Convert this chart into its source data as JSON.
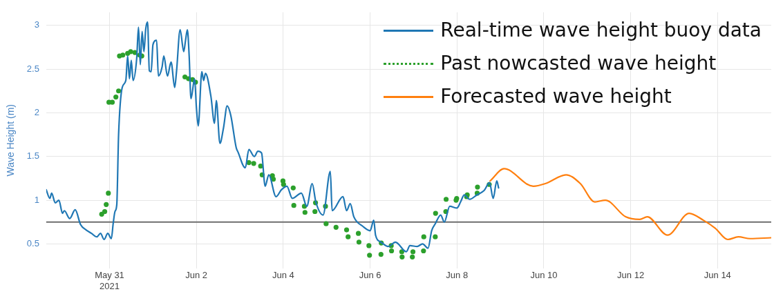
{
  "chart_data": {
    "type": "line",
    "ylabel": "Wave Height (m)",
    "xlim": [
      "2021-05-29T13:00",
      "2021-06-15T05:40"
    ],
    "xticks": [
      {
        "value": "2021-05-31",
        "label": "May 31\n2021"
      },
      {
        "value": "2021-06-02",
        "label": "Jun 2"
      },
      {
        "value": "2021-06-04",
        "label": "Jun 4"
      },
      {
        "value": "2021-06-06",
        "label": "Jun 6"
      },
      {
        "value": "2021-06-08",
        "label": "Jun 8"
      },
      {
        "value": "2021-06-10",
        "label": "Jun 10"
      },
      {
        "value": "2021-06-12",
        "label": "Jun 12"
      },
      {
        "value": "2021-06-14",
        "label": "Jun 14"
      }
    ],
    "ylim": [
      0.22,
      3.15
    ],
    "yticks": [
      0.5,
      1,
      1.5,
      2,
      2.5,
      3
    ],
    "grid": true,
    "legend": "top right",
    "ref_lines": [
      {
        "axis": "y",
        "value": 0.75,
        "color": "#6e6e6e"
      }
    ],
    "series": [
      {
        "name": "Real-time wave height buoy data",
        "color": "#1f77b4",
        "line_style": "solid",
        "x": [
          "2021-05-29T13:00",
          "2021-05-29T15:00",
          "2021-05-29T16:00",
          "2021-05-29T18:00",
          "2021-05-29T20:00",
          "2021-05-29T22:00",
          "2021-05-29T23:00",
          "2021-05-30T02:00",
          "2021-05-30T05:00",
          "2021-05-30T08:00",
          "2021-05-30T11:00",
          "2021-05-30T14:00",
          "2021-05-30T17:00",
          "2021-05-30T19:00",
          "2021-05-30T21:00",
          "2021-05-30T23:00",
          "2021-05-31T01:00",
          "2021-05-31T02:00",
          "2021-05-31T03:00",
          "2021-05-31T04:00",
          "2021-05-31T05:00",
          "2021-05-31T07:00",
          "2021-05-31T09:00",
          "2021-05-31T10:00",
          "2021-05-31T11:00",
          "2021-05-31T12:00",
          "2021-05-31T13:00",
          "2021-05-31T15:00",
          "2021-05-31T16:00",
          "2021-05-31T17:00",
          "2021-05-31T18:00",
          "2021-05-31T19:00",
          "2021-05-31T20:00",
          "2021-05-31T21:00",
          "2021-05-31T22:00",
          "2021-05-31T23:00",
          "2021-06-01T00:00",
          "2021-06-01T02:00",
          "2021-06-01T03:00",
          "2021-06-01T05:00",
          "2021-06-01T06:00",
          "2021-06-01T08:00",
          "2021-06-01T10:00",
          "2021-06-01T12:00",
          "2021-06-01T13:00",
          "2021-06-01T15:00",
          "2021-06-01T17:00",
          "2021-06-01T18:00",
          "2021-06-01T19:00",
          "2021-06-01T20:00",
          "2021-06-01T21:00",
          "2021-06-01T23:00",
          "2021-06-02T00:00",
          "2021-06-02T01:00",
          "2021-06-02T03:00",
          "2021-06-02T04:00",
          "2021-06-02T05:00",
          "2021-06-02T08:00",
          "2021-06-02T10:00",
          "2021-06-02T11:00",
          "2021-06-02T13:00",
          "2021-06-02T15:00",
          "2021-06-02T17:00",
          "2021-06-02T19:00",
          "2021-06-02T22:00",
          "2021-06-02T23:00",
          "2021-06-03T03:00",
          "2021-06-03T05:00",
          "2021-06-03T08:00",
          "2021-06-03T10:00",
          "2021-06-03T12:00",
          "2021-06-03T14:00",
          "2021-06-03T16:00",
          "2021-06-03T20:00",
          "2021-06-03T23:00",
          "2021-06-04T02:00",
          "2021-06-04T05:00",
          "2021-06-04T10:00",
          "2021-06-04T13:00",
          "2021-06-04T16:00",
          "2021-06-04T18:00",
          "2021-06-04T22:00",
          "2021-06-05T02:00",
          "2021-06-05T03:00",
          "2021-06-05T09:00",
          "2021-06-05T11:00",
          "2021-06-05T13:00",
          "2021-06-05T15:00",
          "2021-06-05T20:00",
          "2021-06-06T00:00",
          "2021-06-06T02:00",
          "2021-06-06T03:00",
          "2021-06-06T06:00",
          "2021-06-06T10:00",
          "2021-06-06T14:00",
          "2021-06-06T20:00",
          "2021-06-06T22:00",
          "2021-06-07T02:00",
          "2021-06-07T05:00",
          "2021-06-07T08:00",
          "2021-06-07T10:00",
          "2021-06-07T12:00",
          "2021-06-07T15:00",
          "2021-06-07T17:00",
          "2021-06-07T20:00",
          "2021-06-08T00:00",
          "2021-06-08T02:00",
          "2021-06-08T04:00",
          "2021-06-08T07:00",
          "2021-06-08T11:00",
          "2021-06-08T15:00",
          "2021-06-08T18:00",
          "2021-06-08T20:00",
          "2021-06-08T22:00",
          "2021-06-08T23:00"
        ],
        "values": [
          1.12,
          1.02,
          1.08,
          0.97,
          1.0,
          0.85,
          0.88,
          0.79,
          0.89,
          0.72,
          0.66,
          0.62,
          0.58,
          0.62,
          0.55,
          0.62,
          0.56,
          0.73,
          0.87,
          0.95,
          1.75,
          2.29,
          2.37,
          2.65,
          2.39,
          2.6,
          2.37,
          2.62,
          2.98,
          2.55,
          2.93,
          2.7,
          2.96,
          3.04,
          2.48,
          2.47,
          2.78,
          2.83,
          2.42,
          2.52,
          2.65,
          2.42,
          2.58,
          2.29,
          2.47,
          2.95,
          2.7,
          2.83,
          2.95,
          2.65,
          2.16,
          2.39,
          2.06,
          1.85,
          2.47,
          2.37,
          2.45,
          2.19,
          1.88,
          2.14,
          1.65,
          1.83,
          2.08,
          1.97,
          1.6,
          1.55,
          1.37,
          1.58,
          1.5,
          1.56,
          1.54,
          1.16,
          1.29,
          1.04,
          1.12,
          1.16,
          1.02,
          1.08,
          0.93,
          1.19,
          0.98,
          0.83,
          1.33,
          0.88,
          1.04,
          0.88,
          0.96,
          0.81,
          0.7,
          0.65,
          0.77,
          0.6,
          0.52,
          0.47,
          0.52,
          0.41,
          0.48,
          0.47,
          0.5,
          0.45,
          0.65,
          0.73,
          0.83,
          0.75,
          0.93,
          0.91,
          0.98,
          1.06,
          1.01,
          1.06,
          1.11,
          1.2,
          1.02,
          1.22,
          1.14
        ]
      },
      {
        "name": "Past nowcasted wave height",
        "type": "scatter",
        "color": "#2ca02c",
        "marker": "circle",
        "x": [
          "2021-05-30T19:40",
          "2021-05-30T21:20",
          "2021-05-30T22:10",
          "2021-05-30T23:20",
          "2021-05-30T23:40",
          "2021-05-31T01:30",
          "2021-05-31T03:30",
          "2021-05-31T05:00",
          "2021-05-31T05:30",
          "2021-05-31T07:20",
          "2021-05-31T10:00",
          "2021-05-31T11:40",
          "2021-05-31T14:00",
          "2021-05-31T16:40",
          "2021-05-31T17:50",
          "2021-06-01T17:40",
          "2021-06-01T19:40",
          "2021-06-01T21:50",
          "2021-06-01T23:30",
          "2021-06-03T05:00",
          "2021-06-03T07:40",
          "2021-06-03T11:30",
          "2021-06-03T12:20",
          "2021-06-03T18:00",
          "2021-06-03T18:30",
          "2021-06-03T23:50",
          "2021-06-04T00:10",
          "2021-06-04T05:30",
          "2021-06-04T05:50",
          "2021-06-04T11:40",
          "2021-06-04T12:00",
          "2021-06-04T17:30",
          "2021-06-04T17:50",
          "2021-06-04T23:20",
          "2021-06-04T23:40",
          "2021-06-05T05:10",
          "2021-06-05T11:00",
          "2021-06-05T11:50",
          "2021-06-05T17:30",
          "2021-06-05T17:50",
          "2021-06-05T23:20",
          "2021-06-05T23:40",
          "2021-06-06T06:00",
          "2021-06-06T06:10",
          "2021-06-06T11:40",
          "2021-06-06T11:50",
          "2021-06-06T17:30",
          "2021-06-06T17:40",
          "2021-06-06T23:20",
          "2021-06-06T23:40",
          "2021-06-07T05:30",
          "2021-06-07T05:40",
          "2021-06-07T12:00",
          "2021-06-07T12:10",
          "2021-06-07T17:50",
          "2021-06-07T18:00",
          "2021-06-07T23:30",
          "2021-06-07T23:50",
          "2021-06-08T05:20",
          "2021-06-08T05:40",
          "2021-06-08T11:10",
          "2021-06-08T11:20",
          "2021-06-08T17:50"
        ],
        "values": [
          0.84,
          0.87,
          0.95,
          1.08,
          2.12,
          2.12,
          2.18,
          2.25,
          2.65,
          2.66,
          2.68,
          2.7,
          2.69,
          2.66,
          2.65,
          2.41,
          2.39,
          2.38,
          2.35,
          1.43,
          1.42,
          1.39,
          1.29,
          1.28,
          1.24,
          1.22,
          1.18,
          1.14,
          0.94,
          0.93,
          0.86,
          0.87,
          0.97,
          0.93,
          0.73,
          0.69,
          0.66,
          0.58,
          0.62,
          0.52,
          0.48,
          0.37,
          0.38,
          0.51,
          0.48,
          0.42,
          0.41,
          0.35,
          0.35,
          0.41,
          0.42,
          0.58,
          0.58,
          0.85,
          0.87,
          1.01,
          1.0,
          1.02,
          1.04,
          1.06,
          1.08,
          1.15,
          1.18
        ]
      },
      {
        "name": "Forecasted wave height",
        "color": "#ff7f0e",
        "line_style": "solid",
        "x": [
          "2021-06-08T18:20",
          "2021-06-09T02:00",
          "2021-06-09T18:10",
          "2021-06-10T00:50",
          "2021-06-10T12:20",
          "2021-06-10T20:10",
          "2021-06-11T04:10",
          "2021-06-11T10:00",
          "2021-06-11T21:10",
          "2021-06-12T05:00",
          "2021-06-12T09:10",
          "2021-06-12T20:20",
          "2021-06-13T08:20",
          "2021-06-13T16:10",
          "2021-06-13T22:40",
          "2021-06-14T05:40",
          "2021-06-14T11:30",
          "2021-06-14T18:00",
          "2021-06-15T05:40"
        ],
        "values": [
          1.22,
          1.36,
          1.16,
          1.19,
          1.29,
          1.19,
          0.98,
          1.0,
          0.81,
          0.78,
          0.81,
          0.6,
          0.85,
          0.77,
          0.68,
          0.55,
          0.58,
          0.56,
          0.57
        ]
      }
    ]
  }
}
